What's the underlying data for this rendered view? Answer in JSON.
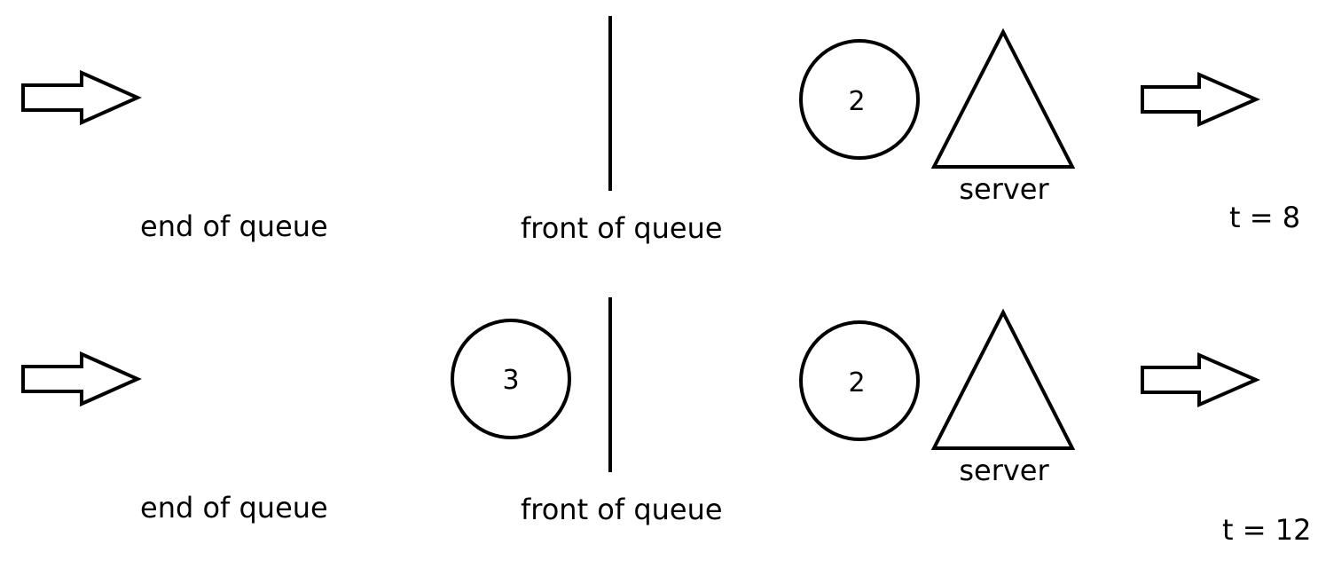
{
  "title": "",
  "rows": [
    {
      "end_label": "end of queue",
      "front_label": "front of queue",
      "queued_customer": null,
      "server_customer": "2",
      "server_label": "server",
      "time_label": "t = 8"
    },
    {
      "end_label": "end of queue",
      "front_label": "front of queue",
      "queued_customer": "3",
      "server_customer": "2",
      "server_label": "server",
      "time_label": "t = 12"
    }
  ],
  "colors": {
    "stroke": "#000000",
    "background": "#ffffff"
  },
  "icons": {
    "arrival": "hollow-right-arrow-icon",
    "departure": "hollow-right-arrow-icon",
    "server": "triangle-icon",
    "customer": "circle-icon"
  }
}
